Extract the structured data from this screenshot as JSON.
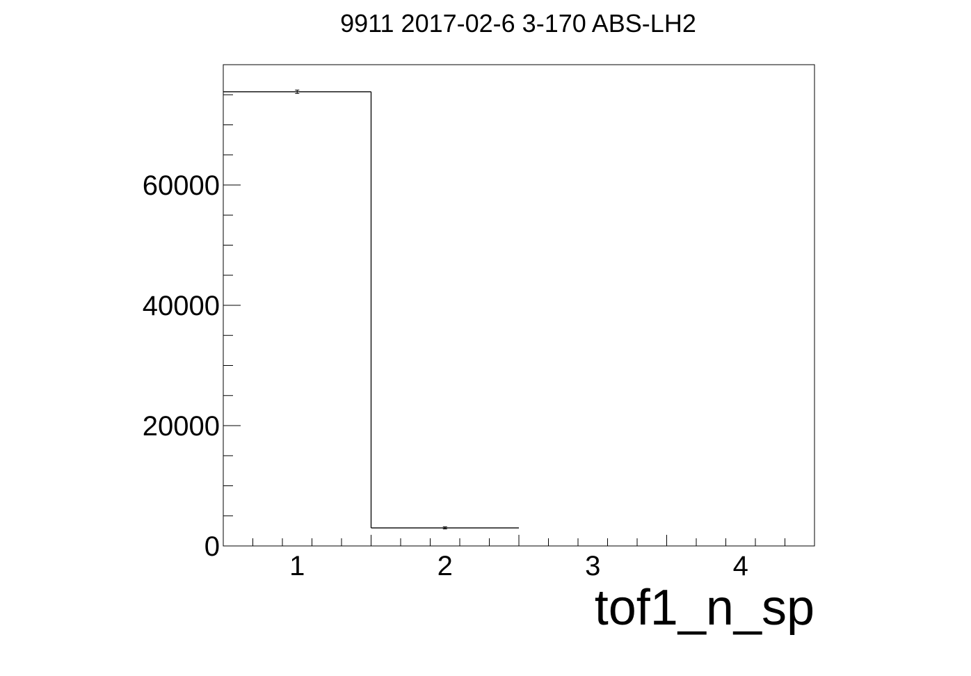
{
  "chart_data": {
    "type": "bar",
    "title": "9911 2017-02-6 3-170 ABS-LH2",
    "xlabel": "tof1_n_sp",
    "ylabel": "",
    "xlim": [
      0.5,
      4.5
    ],
    "ylim": [
      0,
      80000
    ],
    "x_ticks": [
      1,
      2,
      3,
      4
    ],
    "y_ticks": [
      0,
      20000,
      40000,
      60000
    ],
    "bins": [
      {
        "x": 1,
        "low": 0.5,
        "high": 1.5,
        "value": 75500,
        "error": 280
      },
      {
        "x": 2,
        "low": 1.5,
        "high": 2.5,
        "value": 3000,
        "error": 55
      },
      {
        "x": 3,
        "low": 2.5,
        "high": 3.5,
        "value": 0,
        "error": 0
      },
      {
        "x": 4,
        "low": 3.5,
        "high": 4.5,
        "value": 0,
        "error": 0
      }
    ],
    "grid": false,
    "legend": "none",
    "colors": {
      "line": "#000000",
      "background": "#ffffff"
    }
  }
}
